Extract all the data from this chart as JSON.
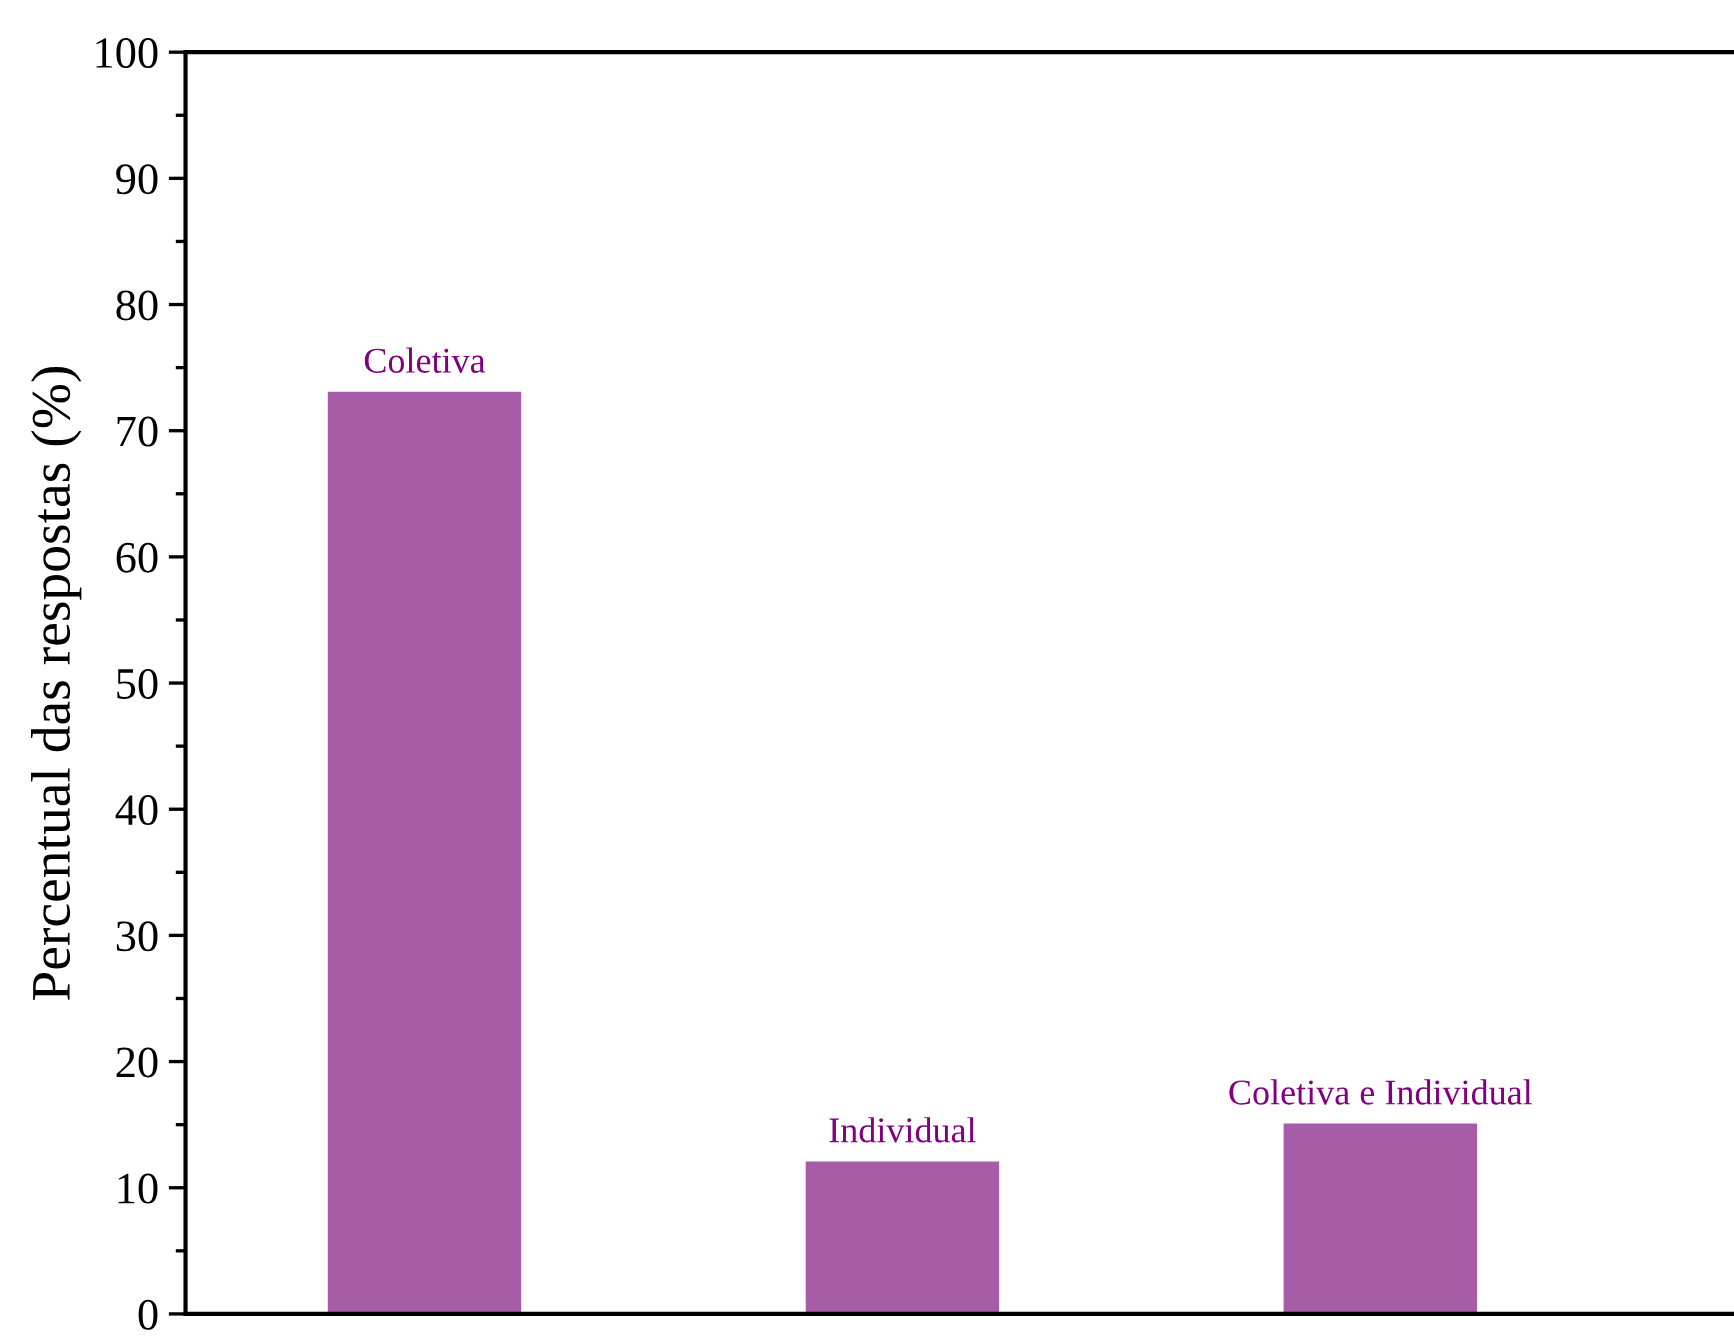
{
  "chart_data": {
    "type": "bar",
    "ylabel": "Percentual das respostas (%)",
    "categories": [
      "Coletiva",
      "Individual",
      "Coletiva e Individual"
    ],
    "values": [
      73,
      12,
      15
    ],
    "color": "#a75ca8",
    "ylim": [
      0,
      100
    ],
    "yticks": [
      0,
      10,
      20,
      30,
      40,
      50,
      60,
      70,
      80,
      90,
      100
    ],
    "grid": false
  }
}
